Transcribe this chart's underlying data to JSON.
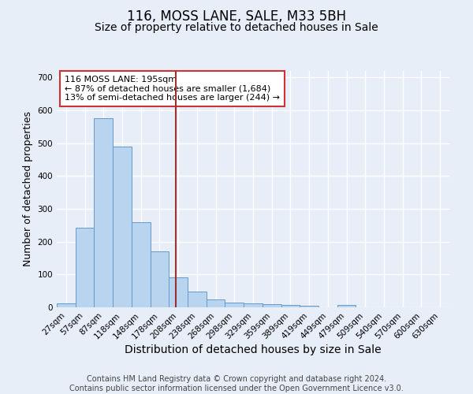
{
  "title": "116, MOSS LANE, SALE, M33 5BH",
  "subtitle": "Size of property relative to detached houses in Sale",
  "xlabel": "Distribution of detached houses by size in Sale",
  "ylabel": "Number of detached properties",
  "bar_labels": [
    "27sqm",
    "57sqm",
    "87sqm",
    "118sqm",
    "148sqm",
    "178sqm",
    "208sqm",
    "238sqm",
    "268sqm",
    "298sqm",
    "329sqm",
    "359sqm",
    "389sqm",
    "419sqm",
    "449sqm",
    "479sqm",
    "509sqm",
    "540sqm",
    "570sqm",
    "600sqm",
    "630sqm"
  ],
  "bar_values": [
    12,
    243,
    575,
    490,
    260,
    170,
    91,
    48,
    25,
    15,
    12,
    9,
    7,
    5,
    0,
    7,
    0,
    0,
    0,
    0,
    0
  ],
  "bar_color": "#b8d4ee",
  "bar_edge_color": "#6699cc",
  "bg_color": "#e8eef8",
  "grid_color": "#ffffff",
  "vline_x": 5.87,
  "vline_color": "#993333",
  "annotation_text": "116 MOSS LANE: 195sqm\n← 87% of detached houses are smaller (1,684)\n13% of semi-detached houses are larger (244) →",
  "annotation_box_color": "#ffffff",
  "annotation_box_edge": "#cc3333",
  "ylim": [
    0,
    720
  ],
  "yticks": [
    0,
    100,
    200,
    300,
    400,
    500,
    600,
    700
  ],
  "footer": "Contains HM Land Registry data © Crown copyright and database right 2024.\nContains public sector information licensed under the Open Government Licence v3.0.",
  "title_fontsize": 12,
  "subtitle_fontsize": 10,
  "xlabel_fontsize": 10,
  "ylabel_fontsize": 9,
  "tick_fontsize": 7.5,
  "footer_fontsize": 7,
  "annotation_fontsize": 8
}
